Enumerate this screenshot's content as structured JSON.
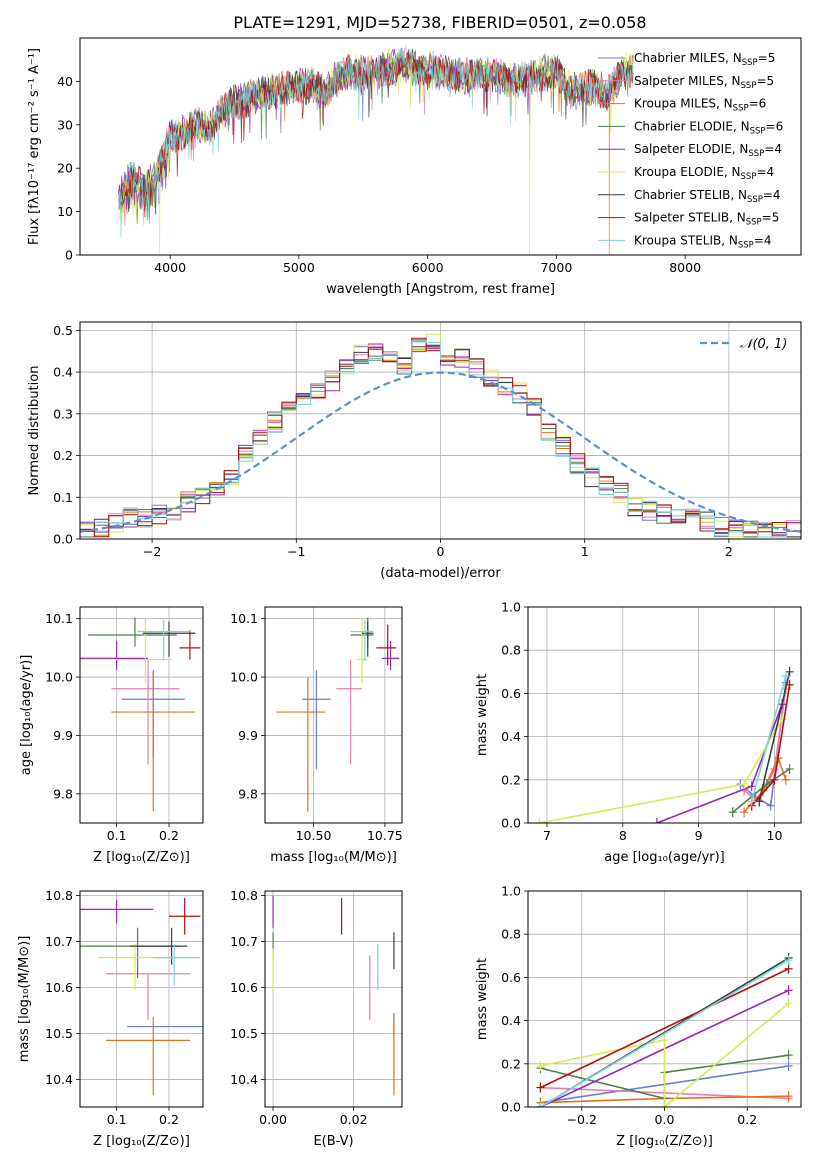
{
  "figure_title": "PLATE=1291, MJD=52738, FIBERID=0501, z=0.058",
  "models": [
    {
      "name": "Chabrier MILES",
      "nssp": "5",
      "color": "#6b7fd0"
    },
    {
      "name": "Salpeter MILES",
      "nssp": "5",
      "color": "#e87fb0"
    },
    {
      "name": "Kroupa MILES",
      "nssp": "6",
      "color": "#e2731c"
    },
    {
      "name": "Chabrier ELODIE",
      "nssp": "6",
      "color": "#4f7f4f"
    },
    {
      "name": "Salpeter ELODIE",
      "nssp": "4",
      "color": "#9a27b5"
    },
    {
      "name": "Kroupa ELODIE",
      "nssp": "4",
      "color": "#d6ea55"
    },
    {
      "name": "Chabrier STELIB",
      "nssp": "4",
      "color": "#3d3d3d"
    },
    {
      "name": "Salpeter STELIB",
      "nssp": "5",
      "color": "#b01010"
    },
    {
      "name": "Kroupa STELIB",
      "nssp": "4",
      "color": "#7fd3d8"
    }
  ],
  "chart_data": [
    {
      "id": "spectrum",
      "type": "line",
      "xlabel": "wavelength [Angstrom, rest frame]",
      "ylabel": "Flux [fλ10⁻¹⁷ erg cm⁻² s⁻¹ A⁻¹]",
      "xlim": [
        3300,
        8900
      ],
      "ylim": [
        0,
        50
      ],
      "xticks": [
        4000,
        5000,
        6000,
        7000,
        8000
      ],
      "yticks": [
        0,
        10,
        20,
        30,
        40
      ],
      "grid": false,
      "legend": "upper right",
      "curve": {
        "x": [
          3600,
          3700,
          3800,
          3900,
          4000,
          4100,
          4200,
          4300,
          4400,
          4500,
          4600,
          4700,
          4800,
          4900,
          5000,
          5100,
          5200,
          5300,
          5400,
          5500,
          5600,
          5700,
          5800,
          5900,
          6000,
          6100,
          6200,
          6300,
          6400,
          6500,
          6600,
          6700,
          6800,
          6900,
          7000,
          7100,
          7200,
          7300,
          7400,
          7500,
          7600
        ],
        "y": [
          13,
          18,
          15,
          19,
          27,
          28,
          30,
          29,
          33,
          35,
          36,
          37,
          38,
          38,
          39,
          39,
          37,
          41,
          42,
          42,
          42,
          43,
          44,
          43,
          43,
          42,
          42,
          41,
          42,
          41,
          41,
          40,
          41,
          42,
          42,
          38,
          38,
          39,
          37,
          42,
          43
        ]
      },
      "drops": [
        {
          "x": 3920,
          "series": 5
        },
        {
          "x": 6790,
          "series": 5
        },
        {
          "x": 7410,
          "series": 2
        }
      ]
    },
    {
      "id": "residuals",
      "type": "line",
      "xlabel": "(data-model)/error",
      "ylabel": "Normed distribution",
      "xlim": [
        -2.5,
        2.5
      ],
      "ylim": [
        0,
        0.52
      ],
      "xticks": [
        -2,
        -1,
        0,
        1,
        2
      ],
      "yticks": [
        0.0,
        0.1,
        0.2,
        0.3,
        0.4,
        0.5
      ],
      "grid": true,
      "legend": "upper right",
      "reference": {
        "label": "𝒩(0, 1)",
        "mean": 0,
        "sigma": 1,
        "color": "#5b8fd6"
      },
      "bin_width": 0.1,
      "base_hist": [
        0.02,
        0.03,
        0.04,
        0.05,
        0.05,
        0.06,
        0.07,
        0.09,
        0.1,
        0.13,
        0.15,
        0.2,
        0.24,
        0.28,
        0.31,
        0.33,
        0.36,
        0.38,
        0.41,
        0.44,
        0.45,
        0.43,
        0.42,
        0.46,
        0.47,
        0.44,
        0.43,
        0.41,
        0.39,
        0.37,
        0.35,
        0.32,
        0.26,
        0.22,
        0.18,
        0.15,
        0.13,
        0.11,
        0.08,
        0.07,
        0.06,
        0.05,
        0.05,
        0.04,
        0.03,
        0.03,
        0.02,
        0.02,
        0.02,
        0.02
      ]
    },
    {
      "id": "age_vs_z",
      "type": "scatter",
      "xlabel": "Z [log₁₀(Z/Z⊙)]",
      "ylabel": "age  [log₁₀(age/yr)]",
      "xlim": [
        0.03,
        0.265
      ],
      "ylim": [
        9.75,
        10.12
      ],
      "xticks": [
        0.1,
        0.2
      ],
      "yticks": [
        9.8,
        9.9,
        10.0,
        10.1
      ],
      "grid": true,
      "points": [
        {
          "x": 0.17,
          "y": 9.962,
          "xerr": [
            0.06,
            0.06
          ],
          "yerr": [
            0.1,
            0.05
          ]
        },
        {
          "x": 0.16,
          "y": 9.98,
          "xerr": [
            0.07,
            0.06
          ],
          "yerr": [
            0.13,
            0.05
          ]
        },
        {
          "x": 0.17,
          "y": 9.94,
          "xerr": [
            0.08,
            0.08
          ],
          "yerr": [
            0.17,
            0.07
          ]
        },
        {
          "x": 0.135,
          "y": 10.072,
          "xerr": [
            0.09,
            0.08
          ],
          "yerr": [
            0.02,
            0.03
          ]
        },
        {
          "x": 0.1,
          "y": 10.032,
          "xerr": [
            0.07,
            0.06
          ],
          "yerr": [
            0.02,
            0.03
          ]
        },
        {
          "x": 0.155,
          "y": 10.03,
          "xerr": [
            0.06,
            0.05
          ],
          "yerr": [
            0.04,
            0.07
          ]
        },
        {
          "x": 0.2,
          "y": 10.075,
          "xerr": [
            0.05,
            0.05
          ],
          "yerr": [
            0.04,
            0.02
          ]
        },
        {
          "x": 0.24,
          "y": 10.05,
          "xerr": [
            0.02,
            0.02
          ],
          "yerr": [
            0.02,
            0.03
          ]
        },
        {
          "x": 0.19,
          "y": 10.078,
          "xerr": [
            0.05,
            0.05
          ],
          "yerr": [
            0.05,
            0.02
          ]
        }
      ]
    },
    {
      "id": "age_vs_mass",
      "type": "scatter",
      "xlabel": "mass [log₁₀(M/M⊙)]",
      "ylabel": "",
      "xlim": [
        10.33,
        10.81
      ],
      "ylim": [
        9.75,
        10.12
      ],
      "xticks": [
        10.5,
        10.75
      ],
      "yticks": [
        9.8,
        9.9,
        10.0,
        10.1
      ],
      "grid": true,
      "points": [
        {
          "x": 10.51,
          "y": 9.962,
          "xerr": [
            0.05,
            0.05
          ],
          "yerr": [
            0.12,
            0.05
          ]
        },
        {
          "x": 10.63,
          "y": 9.98,
          "xerr": [
            0.05,
            0.04
          ],
          "yerr": [
            0.13,
            0.05
          ]
        },
        {
          "x": 10.48,
          "y": 9.94,
          "xerr": [
            0.11,
            0.06
          ],
          "yerr": [
            0.17,
            0.06
          ]
        },
        {
          "x": 10.69,
          "y": 10.072,
          "xerr": [
            0.06,
            0.02
          ],
          "yerr": [
            0.02,
            0.03
          ]
        },
        {
          "x": 10.77,
          "y": 10.032,
          "xerr": [
            0.03,
            0.03
          ],
          "yerr": [
            0.02,
            0.03
          ]
        },
        {
          "x": 10.67,
          "y": 10.03,
          "xerr": [
            0.02,
            0.02
          ],
          "yerr": [
            0.04,
            0.07
          ]
        },
        {
          "x": 10.69,
          "y": 10.075,
          "xerr": [
            0.02,
            0.02
          ],
          "yerr": [
            0.04,
            0.02
          ]
        },
        {
          "x": 10.76,
          "y": 10.05,
          "xerr": [
            0.04,
            0.03
          ],
          "yerr": [
            0.03,
            0.04
          ]
        },
        {
          "x": 10.68,
          "y": 10.078,
          "xerr": [
            0.05,
            0.03
          ],
          "yerr": [
            0.05,
            0.02
          ]
        }
      ]
    },
    {
      "id": "massweight_vs_age",
      "type": "line",
      "xlabel": "age  [log₁₀(age/yr)]",
      "ylabel": "mass weight",
      "xlim": [
        6.75,
        10.35
      ],
      "ylim": [
        0,
        1.0
      ],
      "xticks": [
        7,
        8,
        9,
        10
      ],
      "yticks": [
        0.0,
        0.2,
        0.4,
        0.6,
        0.8,
        1.0
      ],
      "grid": true,
      "series": [
        {
          "x": [
            9.55,
            9.75,
            9.95,
            10.15
          ],
          "y": [
            0.18,
            0.12,
            0.08,
            0.65
          ]
        },
        {
          "x": [
            9.6,
            9.8,
            10.0,
            10.15
          ],
          "y": [
            0.15,
            0.1,
            0.25,
            0.62
          ]
        },
        {
          "x": [
            9.6,
            9.85,
            10.05,
            10.15
          ],
          "y": [
            0.05,
            0.15,
            0.3,
            0.2
          ]
        },
        {
          "x": [
            9.45,
            9.9,
            10.2
          ],
          "y": [
            0.05,
            0.18,
            0.25
          ]
        },
        {
          "x": [
            8.45,
            9.7,
            10.1
          ],
          "y": [
            0.0,
            0.17,
            0.55
          ]
        },
        {
          "x": [
            6.9,
            9.6,
            10.1
          ],
          "y": [
            0.0,
            0.18,
            0.48
          ]
        },
        {
          "x": [
            9.8,
            10.2
          ],
          "y": [
            0.1,
            0.7
          ]
        },
        {
          "x": [
            9.7,
            10.0,
            10.2
          ],
          "y": [
            0.08,
            0.2,
            0.64
          ]
        },
        {
          "x": [
            9.7,
            10.15
          ],
          "y": [
            0.1,
            0.68
          ]
        }
      ]
    },
    {
      "id": "mass_vs_z",
      "type": "scatter",
      "xlabel": "Z [log₁₀(Z/Z⊙)]",
      "ylabel": "mass [log₁₀(M/M⊙)]",
      "xlim": [
        0.03,
        0.265
      ],
      "ylim": [
        10.34,
        10.81
      ],
      "xticks": [
        0.1,
        0.2
      ],
      "yticks": [
        10.4,
        10.5,
        10.6,
        10.7,
        10.8
      ],
      "grid": true,
      "points": [
        {
          "x": 0.19,
          "y": 10.515,
          "xerr": [
            0.07,
            0.08
          ],
          "yerr": [
            0.0,
            0.0
          ]
        },
        {
          "x": 0.16,
          "y": 10.63,
          "xerr": [
            0.08,
            0.08
          ],
          "yerr": [
            0.1,
            0.0
          ]
        },
        {
          "x": 0.17,
          "y": 10.485,
          "xerr": [
            0.09,
            0.07
          ],
          "yerr": [
            0.12,
            0.05
          ]
        },
        {
          "x": 0.14,
          "y": 10.69,
          "xerr": [
            0.11,
            0.08
          ],
          "yerr": [
            0.07,
            0.04
          ]
        },
        {
          "x": 0.1,
          "y": 10.77,
          "xerr": [
            0.07,
            0.07
          ],
          "yerr": [
            0.03,
            0.02
          ]
        },
        {
          "x": 0.135,
          "y": 10.665,
          "xerr": [
            0.07,
            0.08
          ],
          "yerr": [
            0.07,
            0.03
          ]
        },
        {
          "x": 0.205,
          "y": 10.69,
          "xerr": [
            0.08,
            0.03
          ],
          "yerr": [
            0.04,
            0.04
          ]
        },
        {
          "x": 0.23,
          "y": 10.755,
          "xerr": [
            0.03,
            0.03
          ],
          "yerr": [
            0.04,
            0.04
          ]
        },
        {
          "x": 0.21,
          "y": 10.665,
          "xerr": [
            0.04,
            0.05
          ],
          "yerr": [
            0.06,
            0.03
          ]
        }
      ]
    },
    {
      "id": "mass_vs_ebv",
      "type": "scatter",
      "xlabel": "E(B-V)",
      "ylabel": "",
      "xlim": [
        -0.002,
        0.032
      ],
      "ylim": [
        10.34,
        10.81
      ],
      "xticks": [
        0.0,
        0.02
      ],
      "yticks": [
        10.4,
        10.5,
        10.6,
        10.7,
        10.8
      ],
      "grid": true,
      "points": [
        {
          "x": 0.03,
          "y": 10.515,
          "xerr": [
            0.0,
            0.0
          ],
          "yerr": [
            0.03,
            0.03
          ]
        },
        {
          "x": 0.024,
          "y": 10.63,
          "xerr": [
            0.0,
            0.0
          ],
          "yerr": [
            0.1,
            0.04
          ]
        },
        {
          "x": 0.03,
          "y": 10.485,
          "xerr": [
            0.0,
            0.0
          ],
          "yerr": [
            0.12,
            0.05
          ]
        },
        {
          "x": 0.0,
          "y": 10.69,
          "xerr": [
            0.0,
            0.0
          ],
          "yerr": [
            0.03,
            0.03
          ]
        },
        {
          "x": 0.0,
          "y": 10.77,
          "xerr": [
            0.0,
            0.0
          ],
          "yerr": [
            0.04,
            0.03
          ]
        },
        {
          "x": 0.0,
          "y": 10.665,
          "xerr": [
            0.0,
            0.0
          ],
          "yerr": [
            0.07,
            0.02
          ]
        },
        {
          "x": 0.03,
          "y": 10.69,
          "xerr": [
            0.0,
            0.0
          ],
          "yerr": [
            0.05,
            0.03
          ]
        },
        {
          "x": 0.017,
          "y": 10.755,
          "xerr": [
            0.0,
            0.0
          ],
          "yerr": [
            0.04,
            0.04
          ]
        },
        {
          "x": 0.026,
          "y": 10.665,
          "xerr": [
            0.0,
            0.0
          ],
          "yerr": [
            0.07,
            0.03
          ]
        }
      ]
    },
    {
      "id": "massweight_vs_z",
      "type": "line",
      "xlabel": "Z [log₁₀(Z/Z⊙)]",
      "ylabel": "mass weight",
      "xlim": [
        -0.33,
        0.33
      ],
      "ylim": [
        0,
        1.0
      ],
      "xticks": [
        -0.2,
        0.0,
        0.2
      ],
      "yticks": [
        0.0,
        0.2,
        0.4,
        0.6,
        0.8,
        1.0
      ],
      "grid": true,
      "series": [
        {
          "x": [
            -0.3,
            0.3
          ],
          "y": [
            0.02,
            0.19
          ]
        },
        {
          "x": [
            -0.3,
            0.3
          ],
          "y": [
            0.09,
            0.04
          ]
        },
        {
          "x": [
            -0.3,
            0.0,
            0.3
          ],
          "y": [
            0.02,
            0.04,
            0.05
          ]
        },
        {
          "x": [
            -0.3,
            0.0,
            0.0,
            0.3
          ],
          "y": [
            0.18,
            0.04,
            0.16,
            0.24
          ]
        },
        {
          "x": [
            -0.3,
            0.3
          ],
          "y": [
            0.0,
            0.54
          ]
        },
        {
          "x": [
            -0.3,
            0.0,
            0.0,
            0.3
          ],
          "y": [
            0.19,
            0.31,
            0.0,
            0.48
          ]
        },
        {
          "x": [
            -0.3,
            0.3
          ],
          "y": [
            0.0,
            0.69
          ]
        },
        {
          "x": [
            -0.3,
            0.3
          ],
          "y": [
            0.09,
            0.64
          ]
        },
        {
          "x": [
            -0.3,
            0.3
          ],
          "y": [
            0.0,
            0.68
          ]
        }
      ]
    }
  ]
}
